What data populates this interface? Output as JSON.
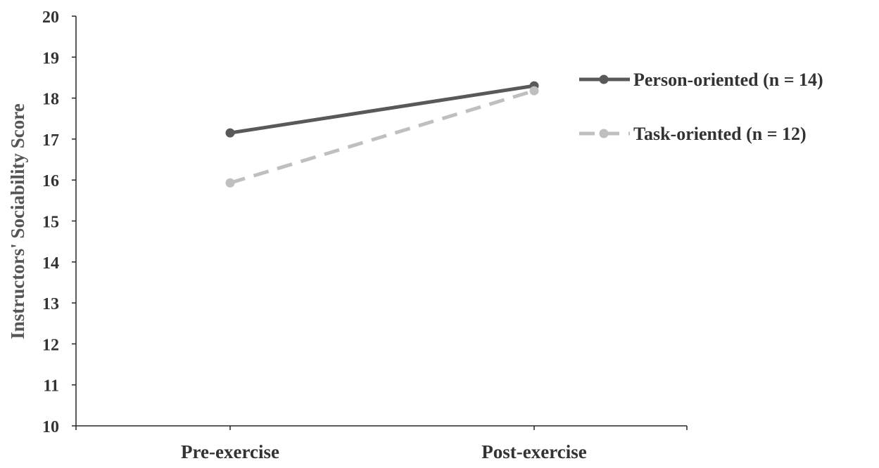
{
  "chart_data": {
    "type": "line",
    "title": "",
    "xlabel": "",
    "ylabel": "Instructors' Sociability Score",
    "categories": [
      "Pre-exercise",
      "Post-exercise"
    ],
    "ylim": [
      10,
      20
    ],
    "yticks": [
      10,
      11,
      12,
      13,
      14,
      15,
      16,
      17,
      18,
      19,
      20
    ],
    "grid": false,
    "legend_position": "right",
    "series": [
      {
        "name": "Person-oriented (n = 14)",
        "values": [
          17.15,
          18.3
        ],
        "color": "#595959",
        "line_style": "solid",
        "marker": "circle"
      },
      {
        "name": "Task-oriented (n = 12)",
        "values": [
          15.93,
          18.18
        ],
        "color": "#BFBFBF",
        "line_style": "dashed",
        "marker": "circle"
      }
    ]
  }
}
